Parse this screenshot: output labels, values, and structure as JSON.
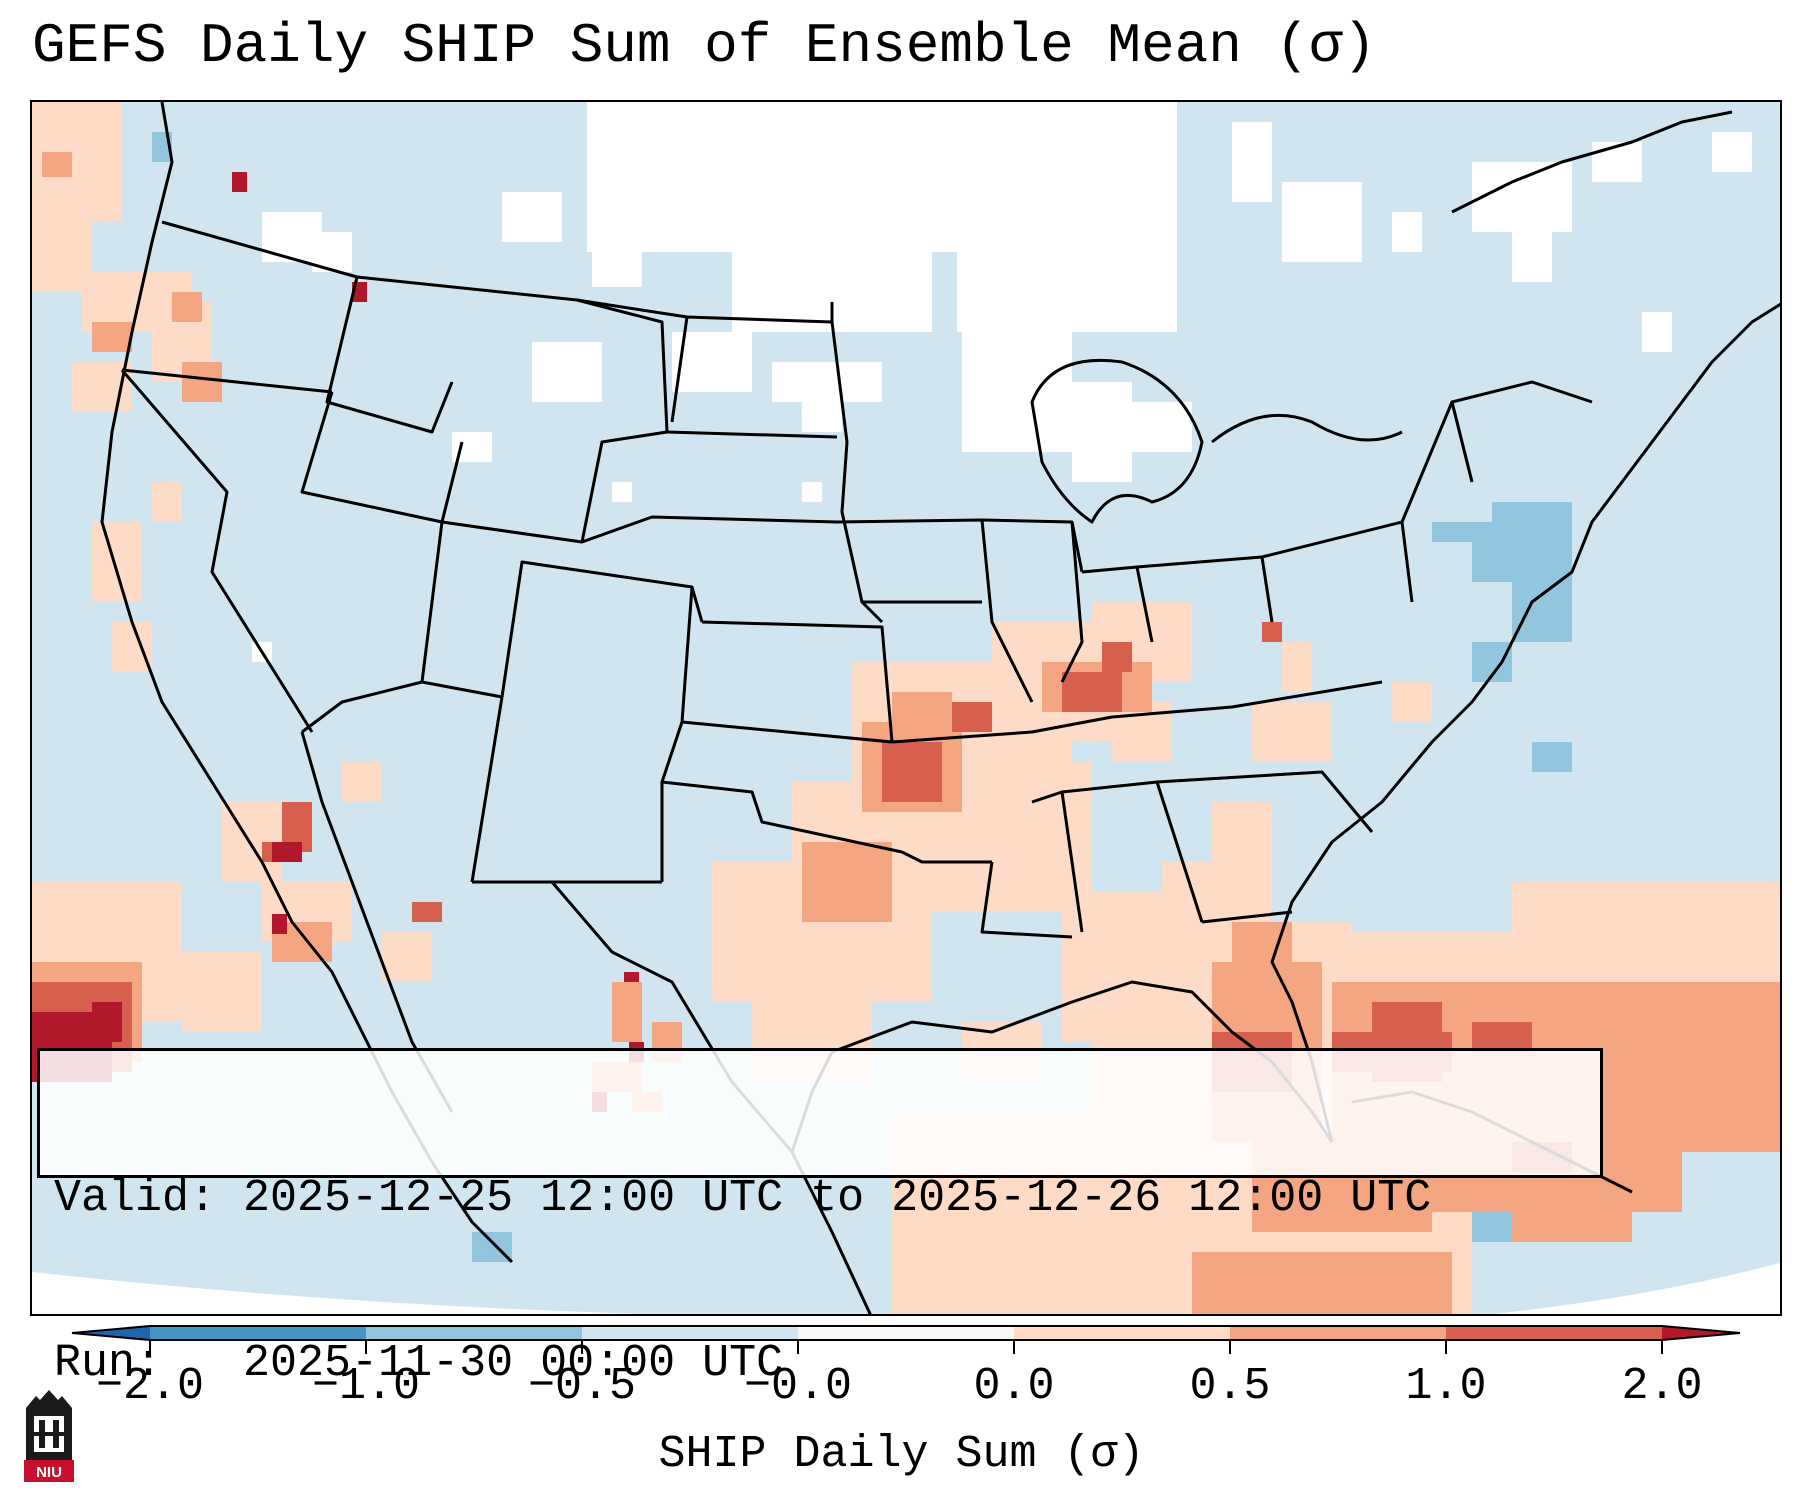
{
  "title": "GEFS Daily SHIP Sum of Ensemble Mean (σ)",
  "info": {
    "valid_label": "Valid:",
    "valid_value": "2025-12-25 12:00 UTC to 2025-12-26 12:00 UTC",
    "run_label": "Run:",
    "run_value": "2025-11-30 00:00 UTC"
  },
  "colorbar": {
    "label": "SHIP Daily Sum (σ)",
    "ticks": [
      "−2.0",
      "−1.0",
      "−0.5",
      "−0.0",
      "0.0",
      "0.5",
      "1.0",
      "2.0"
    ],
    "colors": [
      "#2a6fb6",
      "#63a5d4",
      "#a9d0e6",
      "#e4eff6",
      "#fbe3d6",
      "#f4a888",
      "#d95c48",
      "#b31b2c"
    ],
    "extend": "both"
  },
  "legend_colors": {
    "neutral_neg": "#d1e5f0",
    "neutral_pos": "#fddbc7",
    "light_red": "#f4a582",
    "mid_red": "#d6604d",
    "dark_red": "#b2182b",
    "light_blue": "#92c5de",
    "no_data": "#ffffff"
  },
  "logo": {
    "text": "NIU"
  }
}
